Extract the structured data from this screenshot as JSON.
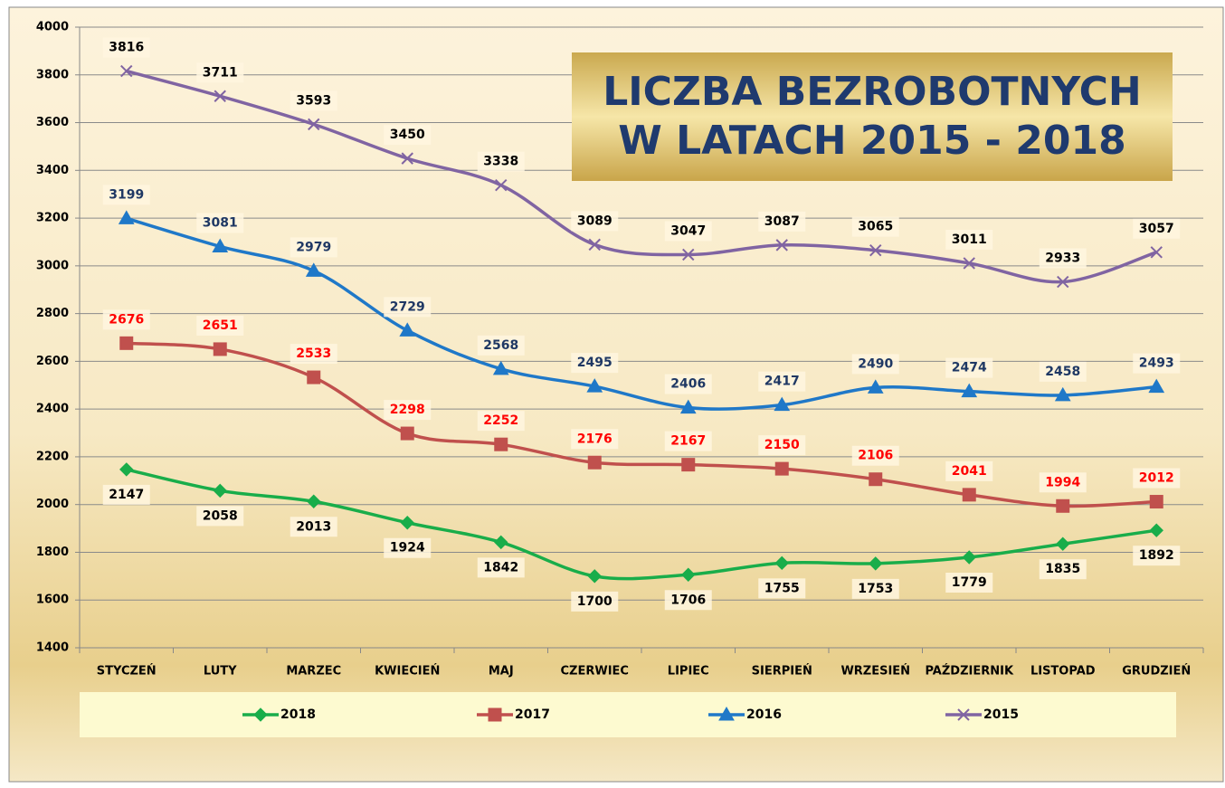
{
  "chart_data": {
    "type": "line",
    "title": [
      "LICZBA BEZROBOTNYCH",
      "W LATACH 2015 - 2018"
    ],
    "categories": [
      "STYCZEŃ",
      "LUTY",
      "MARZEC",
      "KWIECIEŃ",
      "MAJ",
      "CZERWIEC",
      "LIPIEC",
      "SIERPIEŃ",
      "WRZESIEŃ",
      "PAŹDZIERNIK",
      "LISTOPAD",
      "GRUDZIEŃ"
    ],
    "series": [
      {
        "name": "2018",
        "color": "#19ad4a",
        "marker": "diamond",
        "label_color": "#000000",
        "label_position": "below",
        "values": [
          2147,
          2058,
          2013,
          1924,
          1842,
          1700,
          1706,
          1755,
          1753,
          1779,
          1835,
          1892
        ]
      },
      {
        "name": "2017",
        "color": "#c0504d",
        "marker": "square",
        "label_color": "#ff0000",
        "label_position": "above",
        "values": [
          2676,
          2651,
          2533,
          2298,
          2252,
          2176,
          2167,
          2150,
          2106,
          2041,
          1994,
          2012
        ]
      },
      {
        "name": "2016",
        "color": "#1f78c8",
        "marker": "triangle",
        "label_color": "#1f3864",
        "label_position": "above",
        "values": [
          3199,
          3081,
          2979,
          2729,
          2568,
          2495,
          2406,
          2417,
          2490,
          2474,
          2458,
          2493
        ]
      },
      {
        "name": "2015",
        "color": "#8064a2",
        "marker": "x",
        "label_color": "#000000",
        "label_position": "above",
        "values": [
          3816,
          3711,
          3593,
          3450,
          3338,
          3089,
          3047,
          3087,
          3065,
          3011,
          2933,
          3057
        ]
      }
    ],
    "ylim": [
      1400,
      4000
    ],
    "yticks": [
      1400,
      1600,
      1800,
      2000,
      2200,
      2400,
      2600,
      2800,
      3000,
      3200,
      3400,
      3600,
      3800,
      4000
    ],
    "grid": true,
    "smooth": true,
    "legend": "bottom"
  }
}
